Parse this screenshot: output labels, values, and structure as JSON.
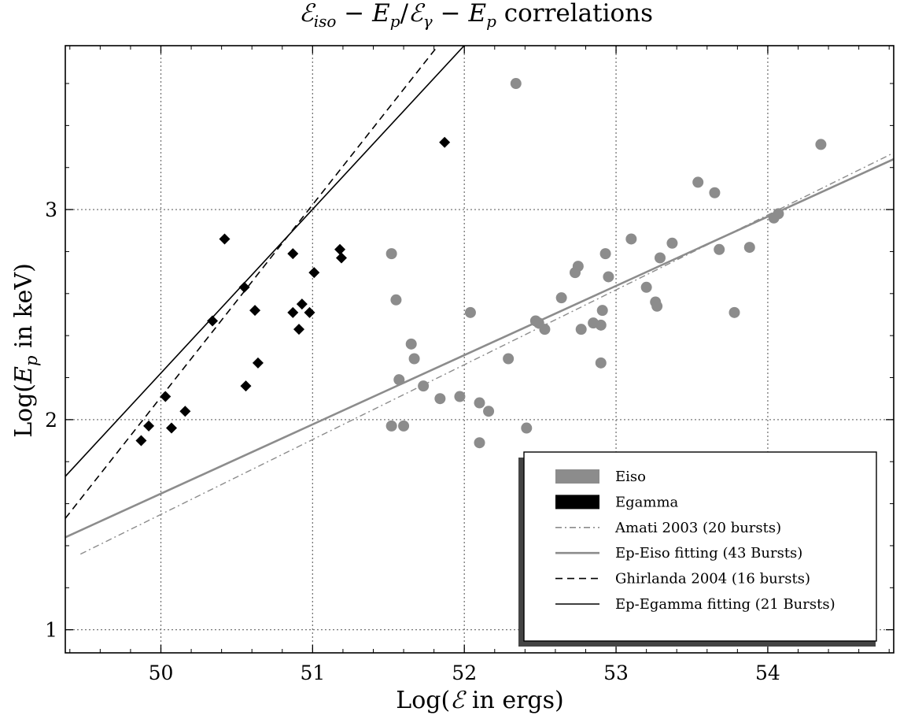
{
  "chart_data": {
    "type": "scatter",
    "title": "ℰiso − Ep/ℰγ − Ep correlations",
    "xlabel": "Log(ℰ in ergs)",
    "ylabel": "Log(Ep in keV)",
    "xlim": [
      49.37,
      54.83
    ],
    "ylim": [
      0.89,
      3.78
    ],
    "xticks": [
      50,
      51,
      52,
      53,
      54
    ],
    "yticks": [
      1,
      2,
      3
    ],
    "grid": true,
    "legend_position": "lower-right",
    "colors": {
      "eiso": "#8c8c8c",
      "egamma": "#000000"
    },
    "series": [
      {
        "name": "Eiso",
        "kind": "points",
        "marker": "circle",
        "color": "#8c8c8c",
        "points": [
          [
            52.34,
            3.6
          ],
          [
            54.35,
            3.31
          ],
          [
            53.54,
            3.13
          ],
          [
            53.65,
            3.08
          ],
          [
            54.07,
            2.98
          ],
          [
            54.04,
            2.96
          ],
          [
            51.52,
            2.79
          ],
          [
            53.1,
            2.86
          ],
          [
            53.37,
            2.84
          ],
          [
            53.88,
            2.82
          ],
          [
            53.68,
            2.81
          ],
          [
            52.93,
            2.79
          ],
          [
            53.29,
            2.77
          ],
          [
            52.75,
            2.73
          ],
          [
            52.73,
            2.7
          ],
          [
            52.95,
            2.68
          ],
          [
            53.2,
            2.63
          ],
          [
            52.64,
            2.58
          ],
          [
            53.26,
            2.56
          ],
          [
            51.55,
            2.57
          ],
          [
            53.27,
            2.54
          ],
          [
            52.91,
            2.52
          ],
          [
            52.04,
            2.51
          ],
          [
            53.78,
            2.51
          ],
          [
            52.47,
            2.47
          ],
          [
            52.49,
            2.46
          ],
          [
            52.85,
            2.46
          ],
          [
            52.9,
            2.45
          ],
          [
            52.53,
            2.43
          ],
          [
            52.77,
            2.43
          ],
          [
            51.65,
            2.36
          ],
          [
            51.67,
            2.29
          ],
          [
            52.29,
            2.29
          ],
          [
            52.9,
            2.27
          ],
          [
            51.57,
            2.19
          ],
          [
            51.73,
            2.16
          ],
          [
            51.97,
            2.11
          ],
          [
            51.84,
            2.1
          ],
          [
            52.1,
            2.08
          ],
          [
            52.16,
            2.04
          ],
          [
            51.52,
            1.97
          ],
          [
            51.6,
            1.97
          ],
          [
            52.41,
            1.96
          ],
          [
            52.1,
            1.89
          ]
        ]
      },
      {
        "name": "Egamma",
        "kind": "points",
        "marker": "diamond",
        "color": "#000000",
        "points": [
          [
            51.87,
            3.32
          ],
          [
            50.42,
            2.86
          ],
          [
            51.18,
            2.81
          ],
          [
            50.87,
            2.79
          ],
          [
            51.19,
            2.77
          ],
          [
            51.01,
            2.7
          ],
          [
            50.55,
            2.63
          ],
          [
            50.93,
            2.55
          ],
          [
            50.62,
            2.52
          ],
          [
            50.87,
            2.51
          ],
          [
            50.98,
            2.51
          ],
          [
            50.34,
            2.47
          ],
          [
            50.91,
            2.43
          ],
          [
            50.64,
            2.27
          ],
          [
            50.56,
            2.16
          ],
          [
            50.03,
            2.11
          ],
          [
            50.16,
            2.04
          ],
          [
            49.92,
            1.97
          ],
          [
            50.07,
            1.96
          ],
          [
            49.87,
            1.9
          ]
        ]
      },
      {
        "name": "Amati 2003 (20 bursts)",
        "kind": "line",
        "style": "dashdot",
        "color": "#8c8c8c",
        "line": [
          [
            49.47,
            1.36
          ],
          [
            54.83,
            3.27
          ]
        ]
      },
      {
        "name": "Ep-Eiso fitting (43 Bursts)",
        "kind": "line",
        "style": "solid",
        "color": "#8c8c8c",
        "line": [
          [
            49.37,
            1.44
          ],
          [
            54.83,
            3.24
          ]
        ]
      },
      {
        "name": "Ghirlanda 2004 (16 bursts)",
        "kind": "line",
        "style": "dashed",
        "color": "#000000",
        "line": [
          [
            49.37,
            1.53
          ],
          [
            51.87,
            3.82
          ]
        ]
      },
      {
        "name": "Ep-Egamma fitting (21 Bursts)",
        "kind": "line",
        "style": "solid",
        "color": "#000000",
        "line": [
          [
            49.37,
            1.73
          ],
          [
            52.05,
            3.82
          ]
        ]
      }
    ],
    "legend": [
      {
        "label": "Eiso",
        "swatch": "patch",
        "color": "#8c8c8c"
      },
      {
        "label": "Egamma",
        "swatch": "patch",
        "color": "#000000"
      },
      {
        "label": "Amati 2003 (20 bursts)",
        "swatch": "dashdot",
        "color": "#8c8c8c"
      },
      {
        "label": "Ep-Eiso fitting (43 Bursts)",
        "swatch": "solid",
        "color": "#8c8c8c"
      },
      {
        "label": "Ghirlanda 2004 (16 bursts)",
        "swatch": "dashed",
        "color": "#000000"
      },
      {
        "label": "Ep-Egamma fitting (21 Bursts)",
        "swatch": "solid",
        "color": "#000000"
      }
    ]
  }
}
